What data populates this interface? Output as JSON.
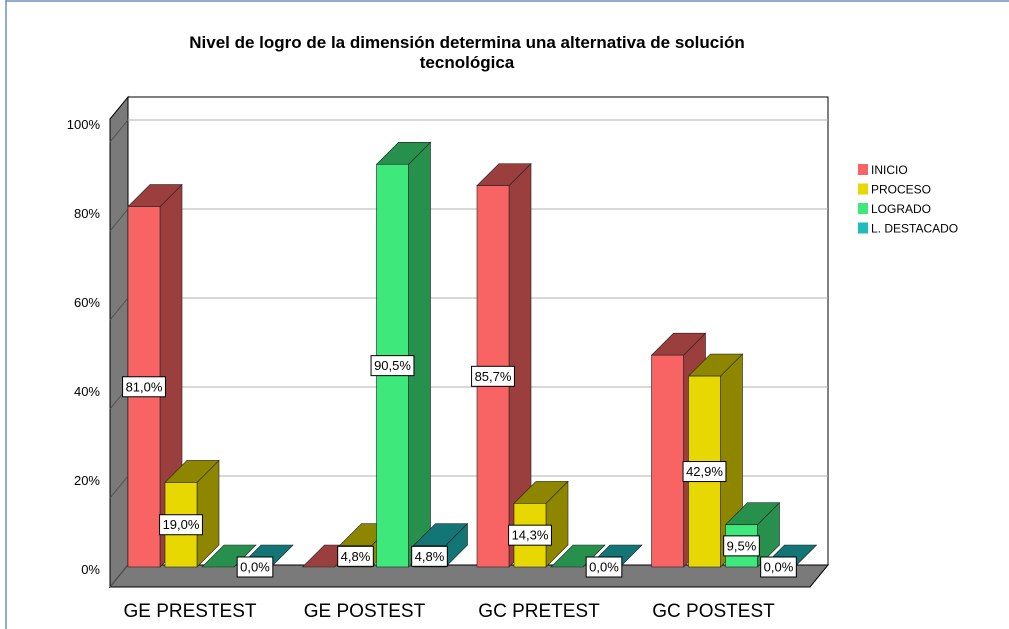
{
  "chart_data": {
    "type": "bar3d",
    "title": "Nivel de logro de la dimensión determina una alternativa de solución",
    "subtitle": "tecnológica",
    "categories": [
      "GE PRESTEST",
      "GE POSTEST",
      "GC PRETEST",
      "GC POSTEST"
    ],
    "series": [
      {
        "name": "INICIO",
        "color": "#f86464",
        "values": [
          81.0,
          0,
          85.7,
          47.6
        ],
        "value_labels": [
          "81,0%",
          null,
          "85,7%",
          null
        ]
      },
      {
        "name": "PROCESO",
        "color": "#e6d800",
        "values": [
          19.0,
          4.8,
          14.3,
          42.9
        ],
        "value_labels": [
          "19,0%",
          "4,8%",
          "14,3%",
          "42,9%"
        ]
      },
      {
        "name": "LOGRADO",
        "color": "#3ee87a",
        "values": [
          0,
          90.5,
          0,
          9.5
        ],
        "value_labels": [
          null,
          "90,5%",
          null,
          "9,5%"
        ]
      },
      {
        "name": "L. DESTACADO",
        "color": "#1ebcbc",
        "values": [
          0.0,
          4.8,
          0.0,
          0.0
        ],
        "value_labels": [
          "0,0%",
          "4,8%",
          "0,0%",
          "0,0%"
        ]
      }
    ],
    "ylim": [
      0,
      100
    ],
    "yticks": [
      {
        "value": 0,
        "label": "0%"
      },
      {
        "value": 20,
        "label": "20%"
      },
      {
        "value": 40,
        "label": "40%"
      },
      {
        "value": 60,
        "label": "60%"
      },
      {
        "value": 80,
        "label": "80%"
      },
      {
        "value": 100,
        "label": "100%"
      }
    ],
    "grid": true,
    "legend": "right"
  }
}
